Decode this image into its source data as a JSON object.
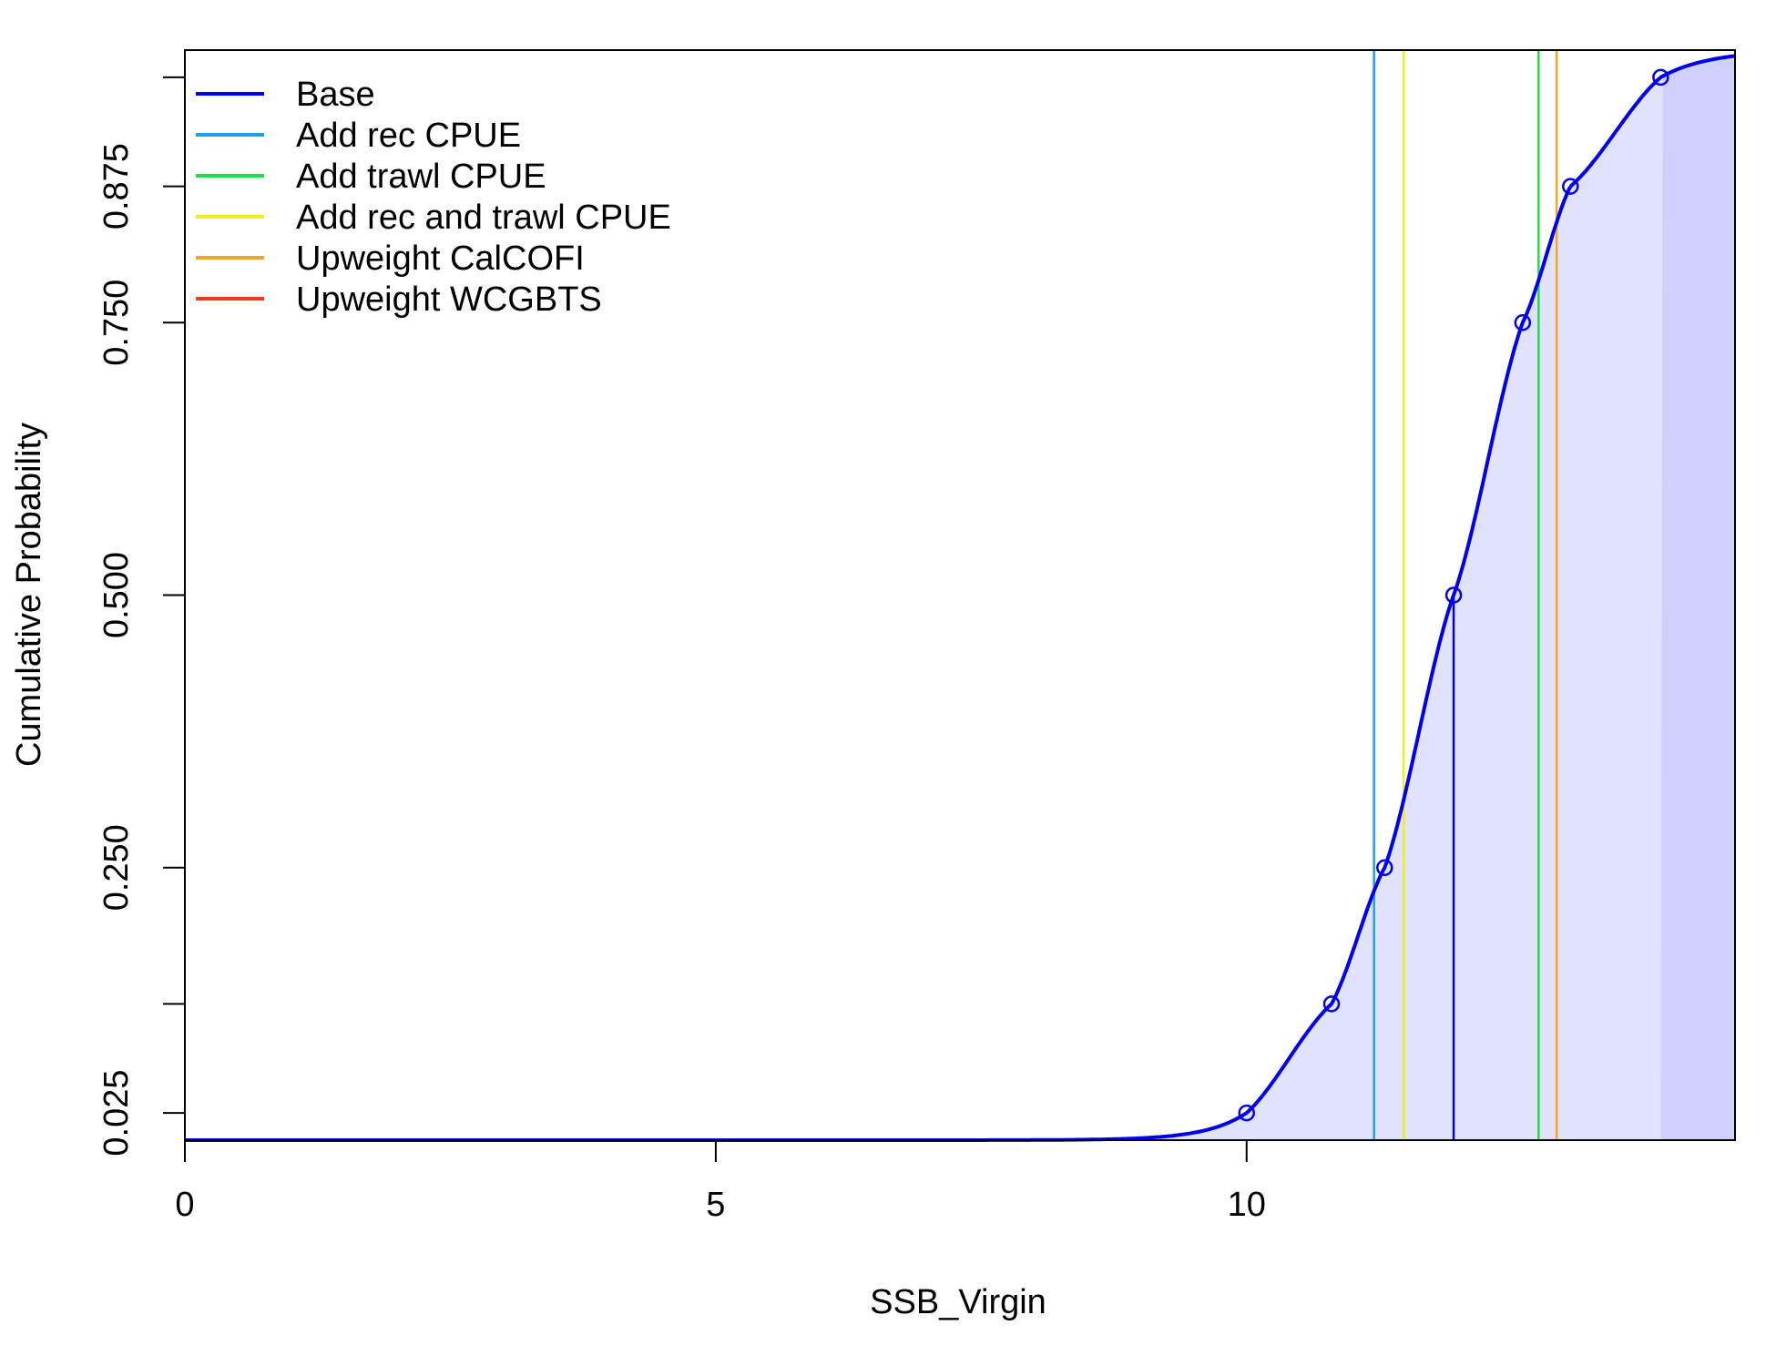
{
  "chart_data": {
    "type": "line",
    "title": "",
    "xlabel": "SSB_Virgin",
    "ylabel": "Cumulative Probability",
    "xlim": [
      0,
      14.6
    ],
    "ylim": [
      0,
      1
    ],
    "x_ticks": [
      0,
      5,
      10
    ],
    "x_tick_labels": [
      "0",
      "5",
      "10"
    ],
    "y_ticks": [
      0.025,
      0.125,
      0.25,
      0.5,
      0.75,
      0.875,
      0.975
    ],
    "y_tick_labels": [
      "0.025",
      "",
      "0.250",
      "0.500",
      "0.750",
      "0.875",
      ""
    ],
    "grid": false,
    "legend_position": "top-left",
    "curve_colors": {
      "line": "#0000ee",
      "fill_light": "#e1e3fc",
      "fill_dark": "#cfd0fc"
    },
    "dark_fill_from_x": 13.9,
    "series": [
      {
        "name": "Base",
        "color": "#0000ee",
        "quantile_points": [
          {
            "x": 10.0,
            "y": 0.025
          },
          {
            "x": 10.8,
            "y": 0.125
          },
          {
            "x": 11.3,
            "y": 0.25
          },
          {
            "x": 11.95,
            "y": 0.5
          },
          {
            "x": 12.6,
            "y": 0.75
          },
          {
            "x": 13.05,
            "y": 0.875
          },
          {
            "x": 13.9,
            "y": 0.975
          }
        ],
        "median_line_x": 11.95
      }
    ],
    "sensitivity_lines": [
      {
        "name": "Add rec CPUE",
        "color": "#1aa3ec",
        "x": 11.2
      },
      {
        "name": "Add trawl CPUE",
        "color": "#22dd44",
        "x": 12.75
      },
      {
        "name": "Add rec and trawl CPUE",
        "color": "#f2ef1a",
        "x": 11.48
      },
      {
        "name": "Upweight CalCOFI",
        "color": "#f5a623",
        "x": 12.92
      },
      {
        "name": "Upweight WCGBTS",
        "color": "#f03a1a",
        "x": null
      }
    ],
    "legend": [
      {
        "label": "Base",
        "color": "#0000ee"
      },
      {
        "label": "Add rec CPUE",
        "color": "#1aa3ec"
      },
      {
        "label": "Add trawl CPUE",
        "color": "#22dd44"
      },
      {
        "label": "Add rec and trawl CPUE",
        "color": "#f2ef1a"
      },
      {
        "label": "Upweight CalCOFI",
        "color": "#f5a623"
      },
      {
        "label": "Upweight WCGBTS",
        "color": "#f03a1a"
      }
    ]
  }
}
